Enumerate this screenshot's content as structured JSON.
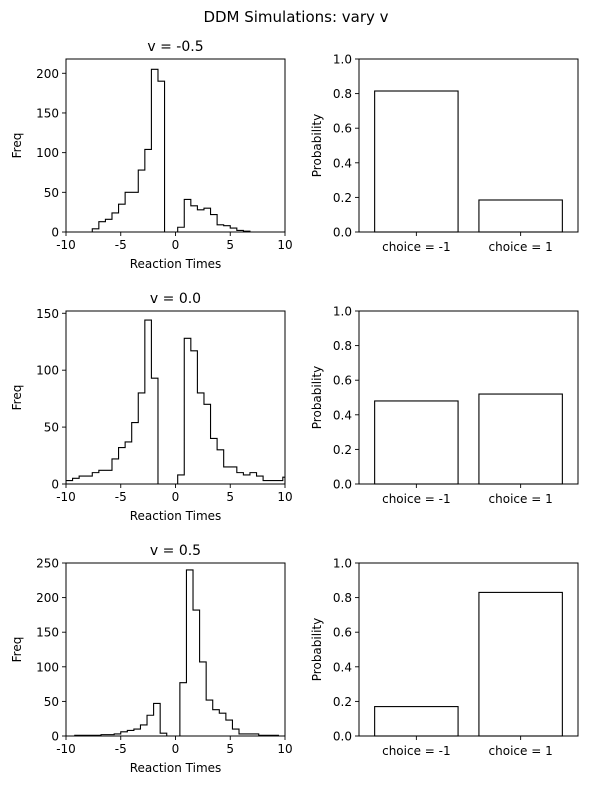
{
  "suptitle": "DDM Simulations: vary v",
  "chart_data": [
    {
      "type": "histogram",
      "title": "v = -0.5",
      "xlabel": "Reaction Times",
      "ylabel": "Freq",
      "xlim": [
        -10,
        10
      ],
      "ylim": [
        0,
        218
      ],
      "xticks": [
        -10,
        -5,
        0,
        5,
        10
      ],
      "yticks": [
        0,
        50,
        100,
        150,
        200
      ],
      "bin_edges": [
        -7.6,
        -7.0,
        -6.4,
        -5.8,
        -5.2,
        -4.6,
        -4.0,
        -3.4,
        -2.8,
        -2.2,
        -1.6,
        -1.0,
        -0.4,
        0.2,
        0.8,
        1.4,
        2.0,
        2.6,
        3.2,
        3.8,
        4.4,
        5.0,
        5.6,
        6.2,
        6.8
      ],
      "counts": [
        4,
        13,
        16,
        24,
        35,
        50,
        50,
        78,
        104,
        205,
        190,
        0,
        0,
        6,
        41,
        33,
        28,
        30,
        22,
        9,
        8,
        5,
        2,
        1
      ]
    },
    {
      "type": "bar",
      "categories": [
        "choice = -1",
        "choice = 1"
      ],
      "values": [
        0.815,
        0.185
      ],
      "ylabel": "Probability",
      "ylim": [
        0,
        1.0
      ],
      "yticks": [
        "0.0",
        "0.2",
        "0.4",
        "0.6",
        "0.8",
        "1.0"
      ]
    },
    {
      "type": "histogram",
      "title": "v = 0.0",
      "xlabel": "Reaction Times",
      "ylabel": "Freq",
      "xlim": [
        -10,
        10
      ],
      "ylim": [
        0,
        152
      ],
      "xticks": [
        -10,
        -5,
        0,
        5,
        10
      ],
      "yticks": [
        0,
        50,
        100,
        150
      ],
      "bin_edges": [
        -10.0,
        -9.4,
        -8.8,
        -8.2,
        -7.6,
        -7.0,
        -6.4,
        -5.8,
        -5.2,
        -4.6,
        -4.0,
        -3.4,
        -2.8,
        -2.2,
        -1.6,
        -1.0,
        -0.4,
        0.2,
        0.8,
        1.4,
        2.0,
        2.6,
        3.2,
        3.8,
        4.4,
        5.0,
        5.6,
        6.2,
        6.8,
        7.4,
        8.0,
        8.6,
        9.2,
        9.8,
        10.0
      ],
      "counts": [
        3,
        5,
        7,
        7,
        10,
        12,
        12,
        22,
        32,
        37,
        54,
        80,
        144,
        93,
        0,
        0,
        0,
        8,
        128,
        117,
        80,
        70,
        40,
        30,
        15,
        15,
        10,
        8,
        10,
        7,
        3,
        3,
        3,
        6
      ]
    },
    {
      "type": "bar",
      "categories": [
        "choice = -1",
        "choice = 1"
      ],
      "values": [
        0.48,
        0.52
      ],
      "ylabel": "Probability",
      "ylim": [
        0,
        1.0
      ],
      "yticks": [
        "0.0",
        "0.2",
        "0.4",
        "0.6",
        "0.8",
        "1.0"
      ]
    },
    {
      "type": "histogram",
      "title": "v = 0.5",
      "xlabel": "Reaction Times",
      "ylabel": "Freq",
      "xlim": [
        -10,
        10
      ],
      "ylim": [
        0,
        250
      ],
      "xticks": [
        -10,
        -5,
        0,
        5,
        10
      ],
      "yticks": [
        0,
        50,
        100,
        150,
        200,
        250
      ],
      "bin_edges": [
        -9.2,
        -8.6,
        -8.0,
        -7.4,
        -6.8,
        -6.2,
        -5.6,
        -5.0,
        -4.4,
        -3.8,
        -3.2,
        -2.6,
        -2.0,
        -1.4,
        -0.8,
        -0.2,
        0.4,
        1.0,
        1.6,
        2.2,
        2.8,
        3.4,
        4.0,
        4.6,
        5.2,
        5.8,
        6.4,
        7.0,
        7.6,
        8.2,
        8.8,
        9.4
      ],
      "counts": [
        1,
        1,
        1,
        1,
        2,
        2,
        3,
        6,
        8,
        10,
        16,
        30,
        47,
        4,
        0,
        0,
        77,
        240,
        182,
        107,
        52,
        38,
        33,
        23,
        10,
        3,
        3,
        3,
        1,
        1,
        1
      ]
    },
    {
      "type": "bar",
      "categories": [
        "choice = -1",
        "choice = 1"
      ],
      "values": [
        0.17,
        0.83
      ],
      "ylabel": "Probability",
      "ylim": [
        0,
        1.0
      ],
      "yticks": [
        "0.0",
        "0.2",
        "0.4",
        "0.6",
        "0.8",
        "1.0"
      ]
    }
  ]
}
